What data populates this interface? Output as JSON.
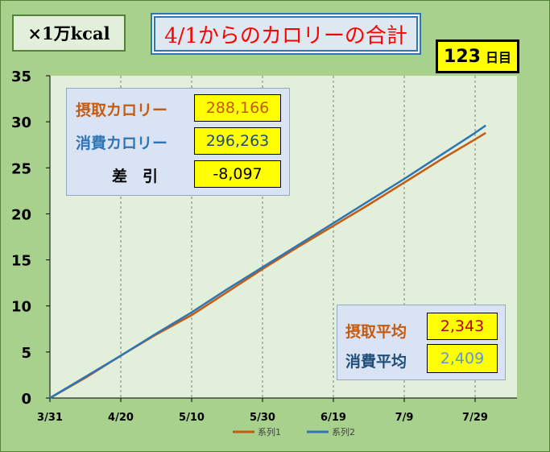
{
  "unit_label": "×1万kcal",
  "title": "4/1からのカロリーの合計",
  "days": {
    "count": "123",
    "unit": "日目"
  },
  "totals": {
    "intake_label": "摂取カロリー",
    "intake_value": "288,166",
    "burn_label": "消費カロリー",
    "burn_value": "296,263",
    "diff_label": "差　引",
    "diff_value": "-8,097"
  },
  "averages": {
    "intake_label": "摂取平均",
    "intake_value": "2,343",
    "burn_label": "消費平均",
    "burn_value": "2,409"
  },
  "colors": {
    "intake": "#c55a11",
    "burn": "#2e75b6",
    "title": "#ff0000",
    "plot_bg": "#e2efda",
    "frame_bg": "#a9d18e"
  },
  "chart_data": {
    "type": "line",
    "title": "4/1からのカロリーの合計",
    "xlabel": "",
    "ylabel": "×1万kcal",
    "x_start": "3/31",
    "x_end": "8/1",
    "x_ticks": [
      "3/31",
      "4/20",
      "5/10",
      "5/30",
      "6/19",
      "7/9",
      "7/29"
    ],
    "y_ticks": [
      0,
      5,
      10,
      15,
      20,
      25,
      30,
      35
    ],
    "ylim": [
      0,
      35
    ],
    "grid": "vertical dashed",
    "legend_position": "bottom",
    "series": [
      {
        "name": "系列1",
        "x": [
          "3/31",
          "4/10",
          "4/20",
          "4/30",
          "5/10",
          "5/20",
          "5/30",
          "6/9",
          "6/19",
          "6/29",
          "7/9",
          "7/19",
          "7/29",
          "8/1"
        ],
        "values": [
          0,
          2.2,
          4.6,
          6.9,
          9.0,
          11.5,
          14.0,
          16.4,
          18.7,
          21.0,
          23.4,
          25.8,
          28.1,
          28.8
        ]
      },
      {
        "name": "系列2",
        "x": [
          "3/31",
          "4/10",
          "4/20",
          "4/30",
          "5/10",
          "5/20",
          "5/30",
          "6/9",
          "6/19",
          "6/29",
          "7/9",
          "7/19",
          "7/29",
          "8/1"
        ],
        "values": [
          0,
          2.3,
          4.6,
          7.0,
          9.3,
          11.8,
          14.2,
          16.6,
          19.0,
          21.4,
          23.8,
          26.3,
          28.8,
          29.6
        ]
      }
    ]
  }
}
